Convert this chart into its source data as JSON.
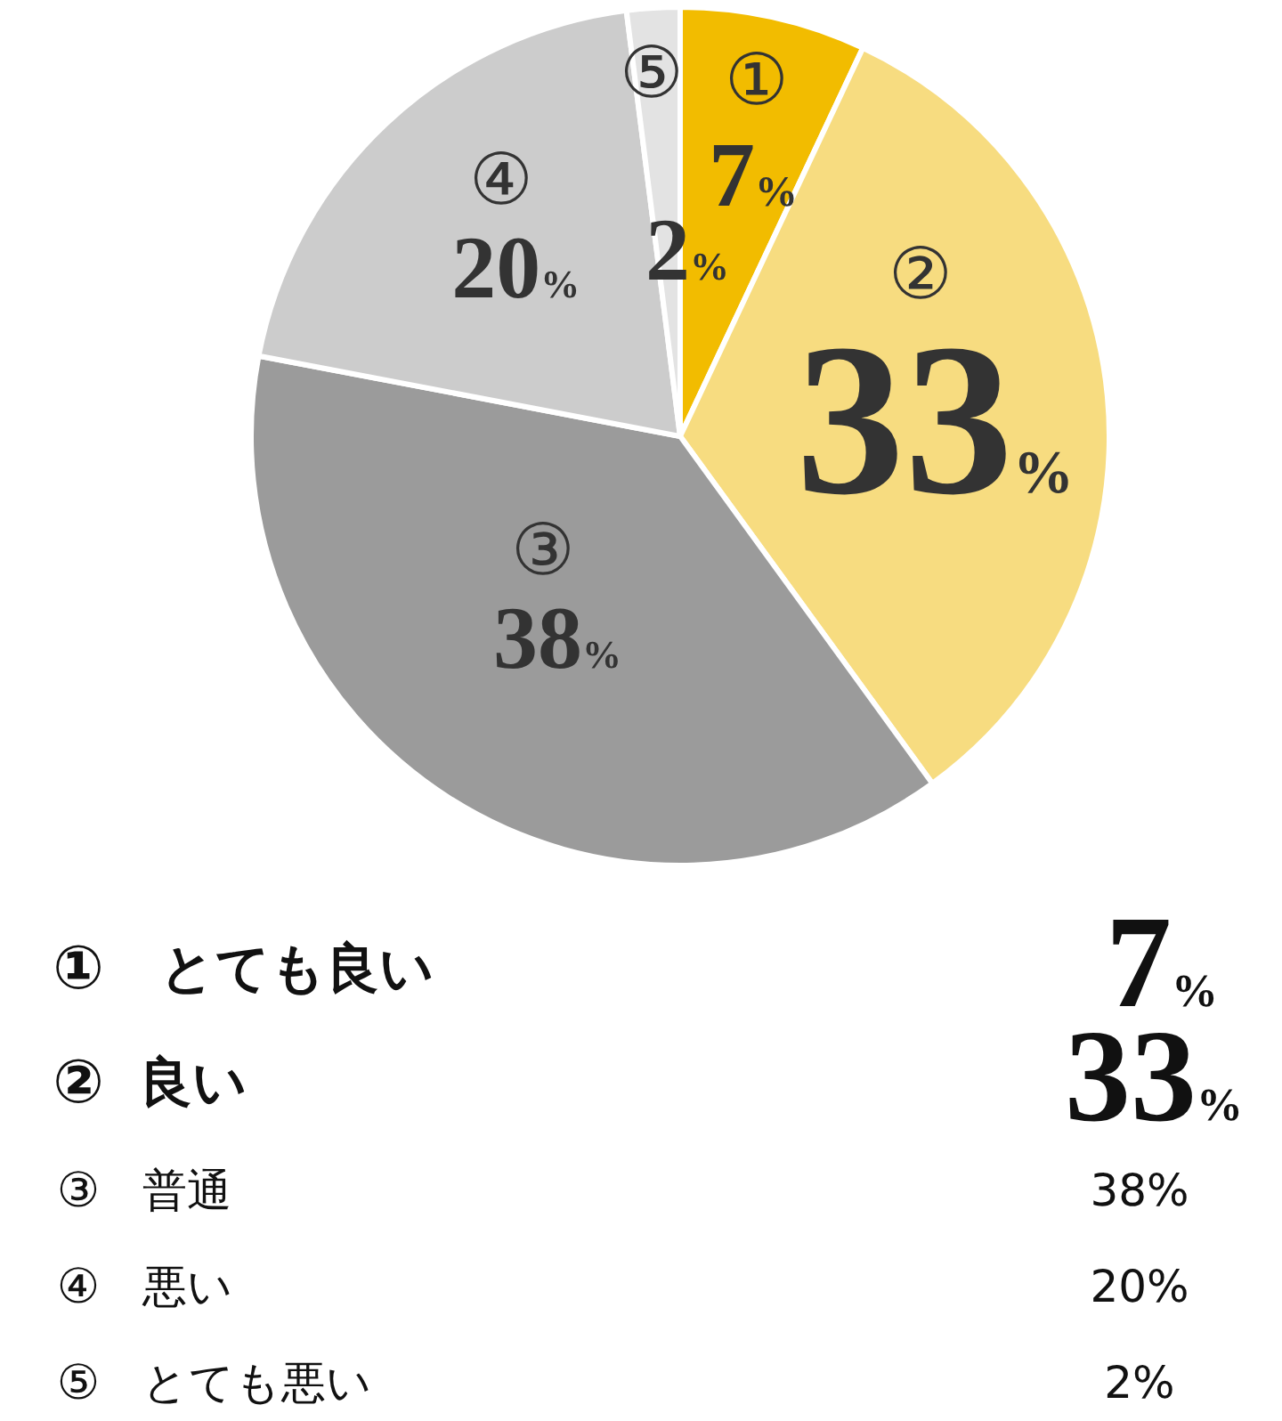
{
  "chart_data": {
    "type": "pie",
    "categories": [
      "①",
      "②",
      "③",
      "④",
      "⑤"
    ],
    "values": [
      7,
      33,
      38,
      20,
      2
    ],
    "colors": [
      "#f2bc00",
      "#f7dc80",
      "#9b9b9b",
      "#cccccc",
      "#e3e3e3"
    ],
    "value_labels": [
      "7%",
      "33%",
      "38%",
      "20%",
      "2%"
    ],
    "annotations": [
      "とても良い",
      "良い",
      "普通",
      "悪い",
      "とても悪い"
    ]
  }
}
